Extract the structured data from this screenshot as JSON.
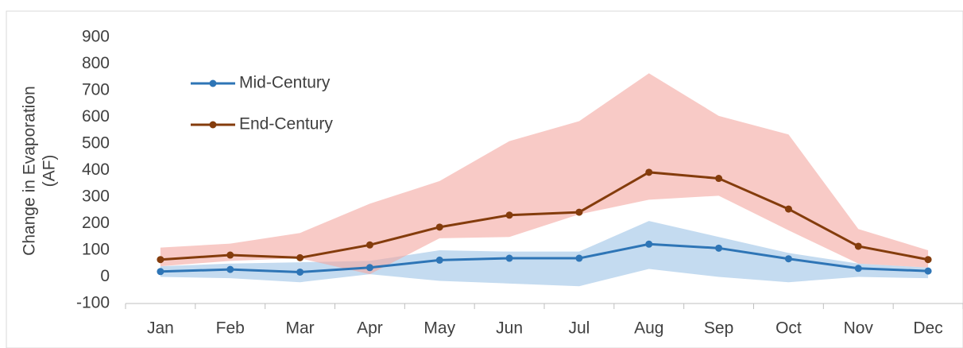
{
  "chart_data": {
    "type": "line",
    "ylabel": [
      "Change in Evaporation",
      "(AF)"
    ],
    "categories": [
      "Jan",
      "Feb",
      "Mar",
      "Apr",
      "May",
      "Jun",
      "Jul",
      "Aug",
      "Sep",
      "Oct",
      "Nov",
      "Dec"
    ],
    "series": [
      {
        "name": "Mid-Century",
        "color": "#2e75b6",
        "band_color": "#9dc3e6",
        "values": [
          20,
          28,
          18,
          35,
          63,
          70,
          70,
          123,
          108,
          68,
          32,
          22
        ],
        "range_low": [
          0,
          -5,
          -20,
          10,
          -15,
          -25,
          -35,
          30,
          0,
          -20,
          0,
          -5
        ],
        "range_high": [
          40,
          50,
          55,
          60,
          100,
          95,
          95,
          210,
          150,
          90,
          50,
          35
        ]
      },
      {
        "name": "End-Century",
        "color": "#843c0c",
        "band_color": "#f4a6a0",
        "values": [
          65,
          82,
          72,
          120,
          187,
          232,
          243,
          393,
          370,
          255,
          115,
          65
        ],
        "range_low": [
          40,
          60,
          70,
          10,
          145,
          150,
          235,
          290,
          305,
          175,
          50,
          35
        ],
        "range_high": [
          110,
          125,
          165,
          275,
          360,
          510,
          585,
          765,
          605,
          535,
          180,
          100
        ]
      }
    ],
    "ylim": [
      -100,
      900
    ],
    "yticks": [
      -100,
      0,
      100,
      200,
      300,
      400,
      500,
      600,
      700,
      800,
      900
    ],
    "grid": false,
    "legend": "top-left"
  }
}
